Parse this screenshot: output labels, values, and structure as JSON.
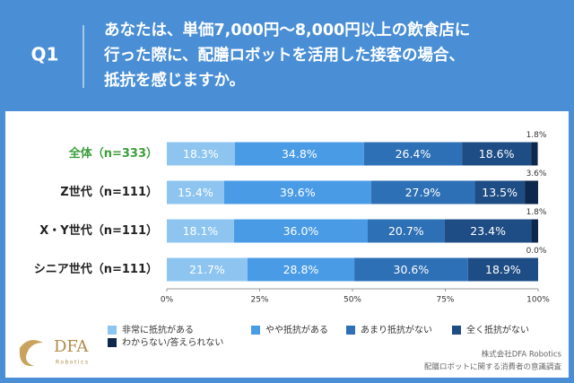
{
  "header": {
    "label": "Q1",
    "question_lines": [
      "あなたは、単価7,000円〜8,000円以上の飲食店に",
      "行った際に、配膳ロボットを活用した接客の場合、",
      "抵抗を感じますか。"
    ]
  },
  "chart_data": {
    "type": "stacked-bar-horizontal",
    "categories": [
      "全体（n=333）",
      "Z世代（n=111）",
      "X・Y世代（n=111）",
      "シニア世代（n=111）"
    ],
    "category_label_colors": [
      "#3a9e3a",
      "#222222",
      "#222222",
      "#222222"
    ],
    "series": [
      {
        "name": "非常に抵抗がある",
        "color": "#8ec5f0",
        "values": [
          18.3,
          15.4,
          18.1,
          21.7
        ],
        "value_labels": [
          "18.3%",
          "15.4%",
          "18.1%",
          "21.7%"
        ]
      },
      {
        "name": "やや抵抗がある",
        "color": "#4a9be6",
        "values": [
          34.8,
          39.6,
          36.0,
          28.8
        ],
        "value_labels": [
          "34.8%",
          "39.6%",
          "36.0%",
          "28.8%"
        ]
      },
      {
        "name": "あまり抵抗がない",
        "color": "#2e70b6",
        "values": [
          26.4,
          27.9,
          20.7,
          30.6
        ],
        "value_labels": [
          "26.4%",
          "27.9%",
          "20.7%",
          "30.6%"
        ]
      },
      {
        "name": "全く抵抗がない",
        "color": "#1e4d85",
        "values": [
          18.6,
          13.5,
          23.4,
          18.9
        ],
        "value_labels": [
          "18.6%",
          "13.5%",
          "23.4%",
          "18.9%"
        ]
      },
      {
        "name": "わからない/答えられない",
        "color": "#0e274d",
        "values": [
          1.8,
          3.6,
          1.8,
          0.0
        ],
        "value_labels": [
          "1.8%",
          "3.6%",
          "1.8%",
          "0.0%"
        ]
      }
    ],
    "xlim": [
      0,
      100
    ],
    "xticks": [
      {
        "value": 0,
        "label": "0%"
      },
      {
        "value": 25,
        "label": "25%"
      },
      {
        "value": 50,
        "label": "50%"
      },
      {
        "value": 75,
        "label": "75%"
      },
      {
        "value": 100,
        "label": "100%"
      }
    ]
  },
  "logo": {
    "name": "DFA",
    "sub": "Robotics"
  },
  "footer": {
    "lines": [
      "株式会社DFA Robotics",
      "配膳ロボットに関する消費者の意識調査"
    ]
  }
}
